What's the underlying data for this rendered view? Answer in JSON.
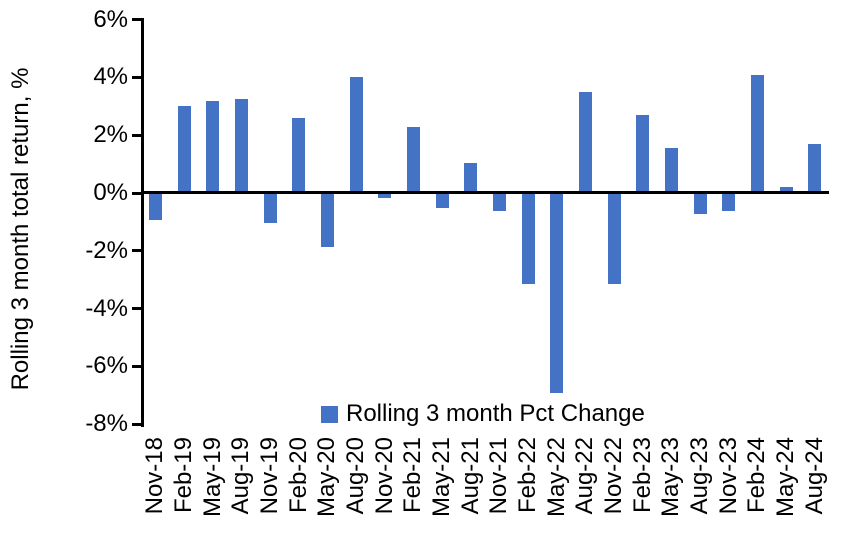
{
  "chart_data": {
    "type": "bar",
    "title": "",
    "xlabel": "",
    "ylabel": "Rolling 3 month total return, %",
    "categories": [
      "Nov-18",
      "Feb-19",
      "May-19",
      "Aug-19",
      "Nov-19",
      "Feb-20",
      "May-20",
      "Aug-20",
      "Nov-20",
      "Feb-21",
      "May-21",
      "Aug-21",
      "Nov-21",
      "Feb-22",
      "May-22",
      "Aug-22",
      "Nov-22",
      "Feb-23",
      "May-23",
      "Aug-23",
      "Nov-23",
      "Feb-24",
      "May-24",
      "Aug-24"
    ],
    "series": [
      {
        "name": "Rolling 3 month Pct Change",
        "values": [
          -0.9,
          3.0,
          3.2,
          3.25,
          -1.0,
          2.6,
          -1.85,
          4.0,
          -0.15,
          2.3,
          -0.5,
          1.05,
          -0.6,
          -3.1,
          -6.9,
          3.5,
          -3.1,
          2.7,
          1.55,
          -0.7,
          -0.6,
          4.1,
          0.2,
          1.7
        ]
      }
    ],
    "ylim": [
      -8,
      6
    ],
    "ytick_step": 2,
    "ytick_labels": [
      "6%",
      "4%",
      "2%",
      "0%",
      "-2%",
      "-4%",
      "-6%",
      "-8%"
    ],
    "ytick_values": [
      6,
      4,
      2,
      0,
      -2,
      -4,
      -6,
      -8
    ],
    "grid": false,
    "legend_position": "bottom-center",
    "bar_color": "#4472C4",
    "axis_color": "#000000",
    "background_color": "#FFFFFF"
  },
  "legend": {
    "label": "Rolling 3 month Pct Change",
    "marker_color": "#4472C4"
  }
}
